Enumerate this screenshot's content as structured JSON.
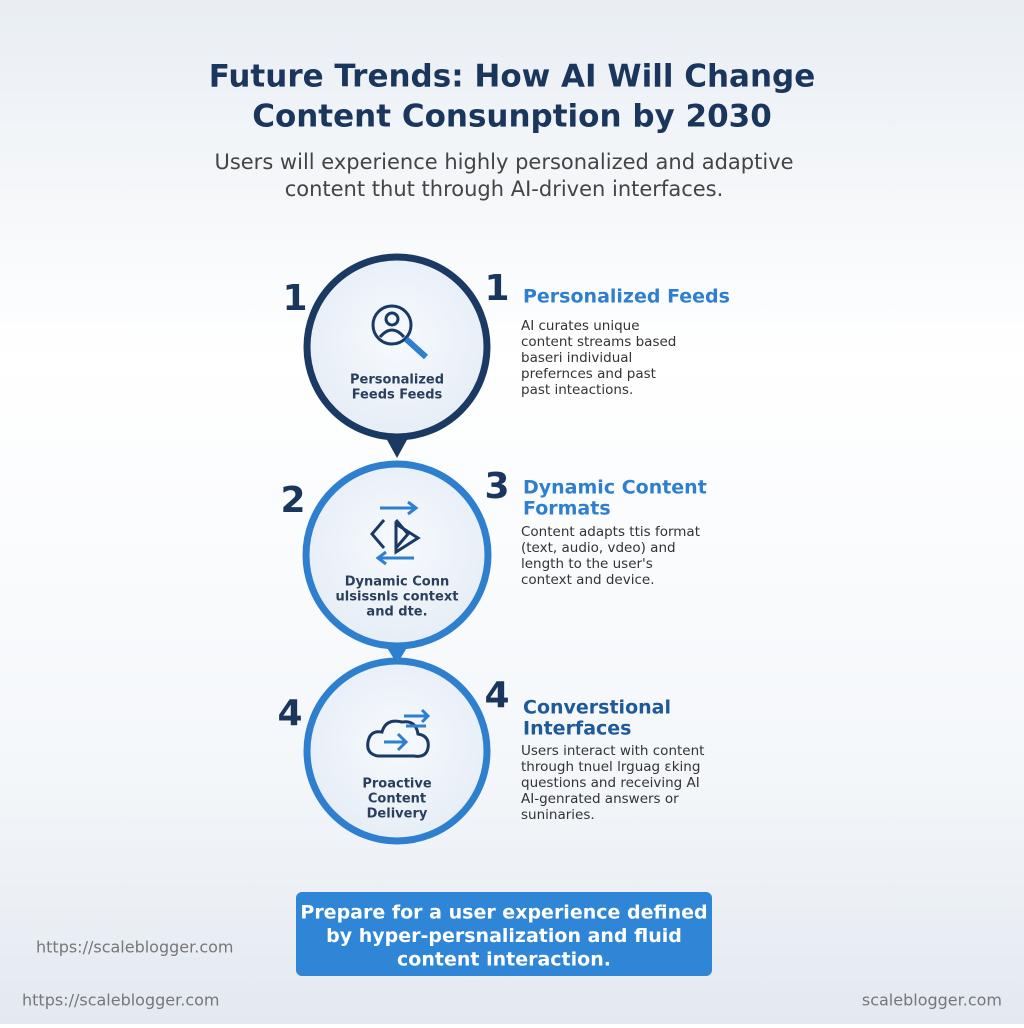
{
  "header": {
    "title_lines": [
      "Future Trends: How AI Will Change",
      "Content Consunption by 2030"
    ],
    "subtitle_lines": [
      "Users will experience highly personalized and adaptive",
      "content thut through AI-driven interfaces."
    ]
  },
  "steps": [
    {
      "left_number": "1",
      "circle_label_lines": [
        "Personalized",
        "Feeds Feeds"
      ],
      "right_number": "1",
      "heading_lines": [
        "Personalized Feeds"
      ],
      "body_lines": [
        "AI curates unique",
        "content streams based",
        "baseri individual",
        "prefernces and past",
        "past inteactions."
      ]
    },
    {
      "left_number": "2",
      "circle_label_lines": [
        "Dynamic Conn",
        "ulsissnls context",
        "and dte."
      ],
      "right_number": "3",
      "heading_lines": [
        "Dynamic Content",
        "Formats"
      ],
      "body_lines": [
        "Content adapts ttis format",
        "(text, audio, vdeo) and",
        "length to the user's",
        "context and device."
      ]
    },
    {
      "left_number": "4",
      "circle_label_lines": [
        "Proactive",
        "Content",
        "Delivery"
      ],
      "right_number": "4",
      "heading_lines": [
        "Converstional",
        "Interfaces"
      ],
      "body_lines": [
        "Users interact with content",
        "through tnuel lrguag  ɛking",
        "questions and receiving AI",
        "AI-genrated answers or",
        "suninaries."
      ]
    }
  ],
  "callout": {
    "lines": [
      "Prepare for a user experience defined",
      "by hyper-persnalization and fluid",
      "content interaction."
    ]
  },
  "watermarks": [
    "https://scaleblogger.com",
    "https://scaleblogger.com",
    "scaleblogger.com"
  ]
}
